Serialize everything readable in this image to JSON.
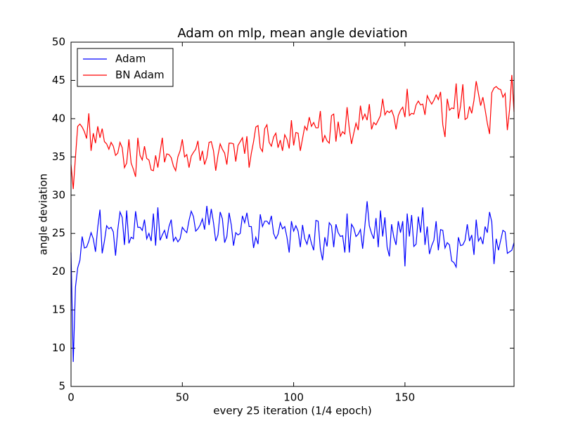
{
  "chart_data": {
    "type": "line",
    "title": "Adam on mlp, mean angle deviation",
    "x_label": "every 25 iteration (1/4 epoch)",
    "y_label": "angle deviation",
    "x": [
      0,
      1,
      2,
      3,
      4,
      5,
      6,
      7,
      8,
      9,
      10,
      11,
      12,
      13,
      14,
      15,
      16,
      17,
      18,
      19,
      20,
      21,
      22,
      23,
      24,
      25,
      26,
      27,
      28,
      29,
      30,
      31,
      32,
      33,
      34,
      35,
      36,
      37,
      38,
      39,
      40,
      41,
      42,
      43,
      44,
      45,
      46,
      47,
      48,
      49,
      50,
      51,
      52,
      53,
      54,
      55,
      56,
      57,
      58,
      59,
      60,
      61,
      62,
      63,
      64,
      65,
      66,
      67,
      68,
      69,
      70,
      71,
      72,
      73,
      74,
      75,
      76,
      77,
      78,
      79,
      80,
      81,
      82,
      83,
      84,
      85,
      86,
      87,
      88,
      89,
      90,
      91,
      92,
      93,
      94,
      95,
      96,
      97,
      98,
      99,
      100,
      101,
      102,
      103,
      104,
      105,
      106,
      107,
      108,
      109,
      110,
      111,
      112,
      113,
      114,
      115,
      116,
      117,
      118,
      119,
      120,
      121,
      122,
      123,
      124,
      125,
      126,
      127,
      128,
      129,
      130,
      131,
      132,
      133,
      134,
      135,
      136,
      137,
      138,
      139,
      140,
      141,
      142,
      143,
      144,
      145,
      146,
      147,
      148,
      149,
      150,
      151,
      152,
      153,
      154,
      155,
      156,
      157,
      158,
      159,
      160,
      161,
      162,
      163,
      164,
      165,
      166,
      167,
      168,
      169,
      170,
      171,
      172,
      173,
      174,
      175,
      176,
      177,
      178,
      179,
      180,
      181,
      182,
      183,
      184,
      185,
      186,
      187,
      188,
      189,
      190,
      191,
      192,
      193,
      194,
      195,
      196,
      197,
      198,
      199
    ],
    "series": [
      {
        "name": "Adam",
        "color": "#0000ff",
        "values": [
          22.5,
          8.2,
          18.0,
          20.5,
          21.5,
          24.6,
          23.1,
          23.2,
          24.0,
          25.1,
          24.3,
          22.6,
          25.8,
          28.1,
          22.4,
          24.0,
          26.0,
          25.6,
          25.8,
          25.2,
          22.1,
          25.5,
          27.8,
          27.1,
          23.5,
          28.0,
          23.7,
          24.5,
          24.3,
          27.9,
          25.8,
          25.8,
          25.4,
          26.8,
          24.3,
          25.0,
          24.0,
          27.6,
          23.4,
          28.4,
          24.1,
          24.8,
          25.4,
          24.3,
          25.9,
          26.8,
          24.0,
          24.5,
          23.9,
          24.3,
          25.8,
          25.4,
          25.1,
          26.7,
          27.9,
          27.2,
          25.3,
          25.6,
          26.1,
          26.9,
          25.5,
          28.6,
          26.1,
          28.2,
          26.4,
          24.0,
          24.8,
          27.8,
          26.9,
          23.8,
          24.6,
          27.7,
          26.1,
          23.4,
          25.1,
          24.8,
          25.0,
          27.3,
          26.4,
          27.7,
          25.9,
          25.9,
          23.1,
          24.5,
          23.6,
          27.5,
          25.9,
          26.6,
          26.6,
          26.2,
          27.3,
          25.0,
          24.3,
          24.9,
          26.4,
          25.6,
          25.9,
          24.5,
          22.5,
          26.6,
          25.3,
          26.0,
          25.3,
          23.2,
          26.1,
          24.3,
          23.6,
          24.9,
          23.7,
          22.8,
          26.7,
          26.6,
          23.0,
          21.5,
          24.5,
          23.3,
          26.4,
          26.0,
          23.2,
          26.2,
          25.1,
          24.6,
          24.7,
          22.5,
          27.6,
          22.5,
          26.2,
          25.7,
          24.6,
          24.9,
          25.5,
          23.0,
          26.0,
          29.2,
          26.0,
          25.0,
          24.3,
          27.0,
          23.2,
          28.0,
          24.6,
          27.1,
          23.2,
          22.0,
          26.2,
          24.5,
          23.5,
          26.6,
          25.1,
          26.6,
          20.7,
          27.6,
          24.6,
          27.4,
          23.3,
          23.6,
          27.2,
          25.1,
          28.4,
          23.5,
          25.9,
          22.3,
          23.4,
          24.1,
          26.6,
          22.8,
          25.5,
          25.4,
          23.1,
          23.8,
          23.5,
          21.4,
          21.2,
          20.6,
          24.5,
          23.4,
          23.5,
          24.1,
          26.2,
          24.0,
          24.8,
          22.2,
          26.8,
          24.0,
          24.5,
          23.6,
          25.9,
          25.1,
          27.8,
          26.5,
          21.0,
          24.3,
          22.8,
          24.1,
          25.4,
          25.2,
          22.4,
          22.6,
          22.8,
          23.8
        ]
      },
      {
        "name": "BN Adam",
        "color": "#ff0000",
        "values": [
          34.0,
          30.8,
          35.0,
          39.0,
          39.3,
          38.9,
          38.3,
          37.4,
          40.7,
          35.8,
          38.1,
          36.8,
          39.0,
          37.5,
          38.7,
          37.0,
          36.7,
          36.0,
          36.9,
          36.4,
          35.2,
          35.5,
          36.9,
          36.2,
          33.6,
          34.2,
          37.3,
          34.2,
          33.4,
          32.4,
          37.5,
          35.2,
          34.6,
          36.4,
          34.8,
          34.6,
          33.3,
          33.2,
          35.2,
          33.6,
          35.6,
          37.5,
          34.3,
          35.4,
          35.3,
          34.9,
          33.8,
          33.2,
          35.0,
          35.8,
          37.3,
          35.0,
          35.3,
          33.6,
          35.1,
          35.6,
          36.0,
          37.1,
          34.5,
          35.8,
          34.0,
          34.9,
          36.9,
          37.0,
          35.8,
          33.2,
          35.2,
          36.7,
          36.0,
          35.5,
          34.0,
          36.8,
          36.8,
          36.7,
          34.4,
          36.5,
          37.0,
          37.5,
          35.4,
          37.7,
          33.6,
          35.5,
          37.0,
          38.9,
          39.1,
          36.2,
          35.7,
          38.7,
          39.2,
          36.9,
          36.4,
          37.6,
          38.1,
          36.2,
          37.2,
          35.8,
          37.9,
          37.3,
          36.1,
          39.8,
          36.5,
          38.2,
          38.1,
          35.8,
          37.4,
          39.0,
          38.5,
          40.2,
          39.0,
          39.5,
          38.8,
          38.8,
          41.0,
          36.9,
          37.8,
          37.1,
          36.8,
          40.4,
          40.6,
          37.0,
          39.6,
          37.7,
          38.3,
          38.0,
          41.5,
          38.7,
          36.7,
          38.1,
          39.4,
          38.5,
          41.7,
          39.9,
          40.6,
          39.8,
          41.9,
          38.6,
          39.5,
          39.2,
          39.8,
          40.4,
          42.6,
          40.5,
          41.0,
          40.8,
          41.1,
          40.3,
          38.6,
          40.4,
          41.1,
          41.5,
          40.2,
          43.9,
          40.4,
          40.7,
          40.6,
          41.8,
          42.3,
          41.8,
          41.9,
          40.5,
          43.0,
          42.4,
          41.9,
          42.4,
          43.1,
          42.5,
          43.5,
          39.2,
          37.6,
          42.6,
          41.1,
          41.4,
          41.3,
          44.6,
          40.0,
          41.7,
          44.5,
          39.9,
          40.1,
          41.6,
          40.7,
          42.4,
          44.9,
          43.3,
          41.7,
          42.8,
          41.2,
          39.4,
          38.0,
          43.4,
          44.0,
          44.2,
          43.9,
          43.8,
          42.8,
          43.3,
          38.5,
          41.2,
          45.7,
          40.9
        ]
      }
    ],
    "xlim": [
      0,
      199
    ],
    "xticks": [
      0,
      50,
      100,
      150
    ],
    "ylim": [
      5,
      50
    ],
    "yticks": [
      5,
      10,
      15,
      20,
      25,
      30,
      35,
      40,
      45,
      50
    ],
    "legend": "upper left",
    "grid": false
  }
}
